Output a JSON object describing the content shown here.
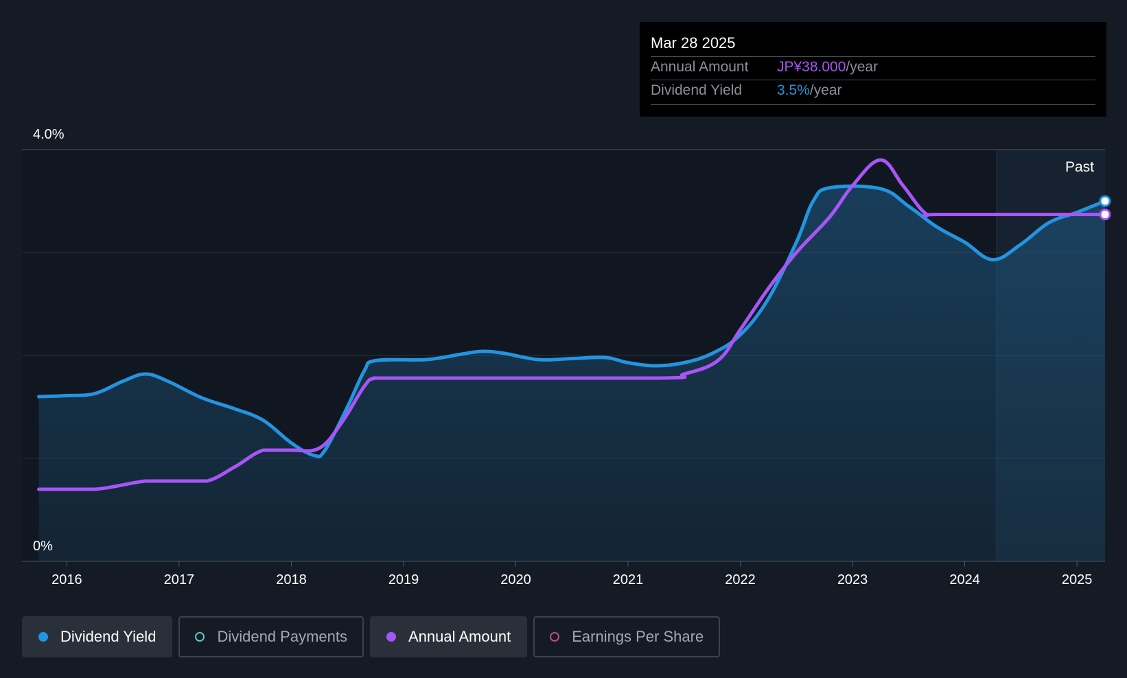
{
  "tooltip": {
    "date": "Mar 28 2025",
    "rows": [
      {
        "label": "Annual Amount",
        "value": "JP¥38.000",
        "unit": "/year",
        "color": "#a855f7"
      },
      {
        "label": "Dividend Yield",
        "value": "3.5%",
        "unit": "/year",
        "color": "#2394df"
      }
    ]
  },
  "chart_data": {
    "type": "line",
    "y_axis": {
      "top_label": "4.0%",
      "bottom_label": "0%",
      "min": 0,
      "max": 4.0
    },
    "x_axis": {
      "ticks": [
        "2016",
        "2017",
        "2018",
        "2019",
        "2020",
        "2021",
        "2022",
        "2023",
        "2024",
        "2025"
      ],
      "min": 2015.6,
      "max": 2025.25
    },
    "past_label": "Past",
    "grid": true,
    "series": [
      {
        "name": "Dividend Yield",
        "color": "#2394df",
        "area": true,
        "points": [
          [
            2015.75,
            1.6
          ],
          [
            2016.0,
            1.61
          ],
          [
            2016.25,
            1.63
          ],
          [
            2016.5,
            1.75
          ],
          [
            2016.7,
            1.82
          ],
          [
            2016.9,
            1.75
          ],
          [
            2017.2,
            1.59
          ],
          [
            2017.5,
            1.48
          ],
          [
            2017.75,
            1.37
          ],
          [
            2018.0,
            1.15
          ],
          [
            2018.2,
            1.03
          ],
          [
            2018.3,
            1.08
          ],
          [
            2018.5,
            1.5
          ],
          [
            2018.65,
            1.85
          ],
          [
            2018.75,
            1.95
          ],
          [
            2019.2,
            1.96
          ],
          [
            2019.5,
            2.01
          ],
          [
            2019.7,
            2.04
          ],
          [
            2019.9,
            2.02
          ],
          [
            2020.2,
            1.96
          ],
          [
            2020.5,
            1.97
          ],
          [
            2020.8,
            1.98
          ],
          [
            2021.0,
            1.93
          ],
          [
            2021.25,
            1.9
          ],
          [
            2021.5,
            1.93
          ],
          [
            2021.75,
            2.02
          ],
          [
            2022.0,
            2.2
          ],
          [
            2022.25,
            2.55
          ],
          [
            2022.5,
            3.1
          ],
          [
            2022.65,
            3.5
          ],
          [
            2022.8,
            3.63
          ],
          [
            2023.25,
            3.62
          ],
          [
            2023.5,
            3.45
          ],
          [
            2023.75,
            3.25
          ],
          [
            2024.0,
            3.1
          ],
          [
            2024.25,
            2.93
          ],
          [
            2024.5,
            3.08
          ],
          [
            2024.75,
            3.29
          ],
          [
            2025.0,
            3.39
          ],
          [
            2025.25,
            3.5
          ]
        ]
      },
      {
        "name": "Annual Amount",
        "color": "#a855f7",
        "area": false,
        "points": [
          [
            2015.75,
            0.7
          ],
          [
            2016.25,
            0.7
          ],
          [
            2016.7,
            0.78
          ],
          [
            2017.0,
            0.78
          ],
          [
            2017.25,
            0.78
          ],
          [
            2017.5,
            0.92
          ],
          [
            2017.75,
            1.08
          ],
          [
            2018.0,
            1.08
          ],
          [
            2018.25,
            1.1
          ],
          [
            2018.45,
            1.35
          ],
          [
            2018.65,
            1.7
          ],
          [
            2018.75,
            1.78
          ],
          [
            2019.0,
            1.78
          ],
          [
            2021.25,
            1.78
          ],
          [
            2021.5,
            1.82
          ],
          [
            2021.8,
            1.95
          ],
          [
            2022.0,
            2.25
          ],
          [
            2022.25,
            2.65
          ],
          [
            2022.5,
            3.0
          ],
          [
            2022.8,
            3.35
          ],
          [
            2023.0,
            3.65
          ],
          [
            2023.25,
            3.9
          ],
          [
            2023.45,
            3.65
          ],
          [
            2023.65,
            3.38
          ],
          [
            2023.8,
            3.37
          ],
          [
            2025.25,
            3.37
          ]
        ]
      }
    ],
    "current_values": {
      "Dividend Yield": 3.5,
      "Annual Amount": 3.37
    }
  },
  "legend": [
    {
      "label": "Dividend Yield",
      "color": "#2394df",
      "filled": true,
      "active": true
    },
    {
      "label": "Dividend Payments",
      "color": "#5ec8c2",
      "filled": false,
      "active": false
    },
    {
      "label": "Annual Amount",
      "color": "#a855f7",
      "filled": true,
      "active": true
    },
    {
      "label": "Earnings Per Share",
      "color": "#c44a7c",
      "filled": false,
      "active": false
    }
  ]
}
